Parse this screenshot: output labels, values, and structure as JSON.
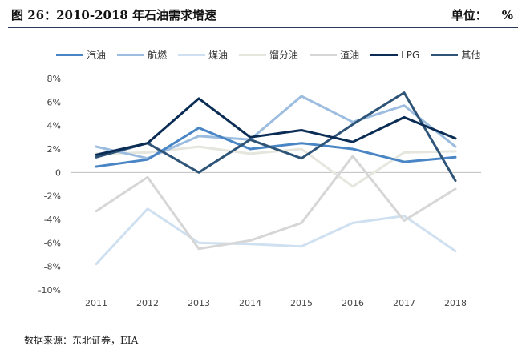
{
  "header": {
    "title": "图 26：2010-2018 年石油需求增速",
    "unit_label": "单位：",
    "unit_value": "%"
  },
  "source": "数据来源：东北证券，EIA",
  "chart_data": {
    "type": "line",
    "title": "2010-2018 年石油需求增速",
    "xlabel": "",
    "ylabel": "%",
    "ylim": [
      -10,
      8
    ],
    "yticks": [
      8,
      6,
      4,
      2,
      0,
      -2,
      -4,
      -6,
      -8,
      -10
    ],
    "ytick_labels": [
      "8%",
      "6%",
      "4%",
      "2%",
      "0",
      "-2%",
      "-4%",
      "-6%",
      "-8%",
      "-10%"
    ],
    "categories": [
      "2011",
      "2012",
      "2013",
      "2014",
      "2015",
      "2016",
      "2017",
      "2018"
    ],
    "grid": false,
    "legend_position": "top",
    "series": [
      {
        "name": "汽油",
        "color": "#4a86c5",
        "values": [
          0.5,
          1.1,
          3.8,
          2.0,
          2.5,
          2.0,
          0.9,
          1.3
        ]
      },
      {
        "name": "航燃",
        "color": "#9cbde0",
        "values": [
          2.2,
          1.2,
          3.1,
          2.8,
          6.5,
          4.3,
          5.7,
          2.2
        ]
      },
      {
        "name": "煤油",
        "color": "#cfe0f0",
        "values": [
          -7.8,
          -3.1,
          -6.0,
          -6.1,
          -6.3,
          -4.3,
          -3.7,
          -6.7
        ]
      },
      {
        "name": "馏分油",
        "color": "#e6e6df",
        "values": [
          1.6,
          1.7,
          2.2,
          1.6,
          2.0,
          -1.2,
          1.7,
          1.8
        ]
      },
      {
        "name": "渣油",
        "color": "#d6d6d6",
        "values": [
          -3.3,
          -0.4,
          -6.5,
          -5.8,
          -4.3,
          1.4,
          -4.1,
          -1.4
        ]
      },
      {
        "name": "LPG",
        "color": "#0b2d55",
        "values": [
          1.5,
          2.5,
          6.3,
          3.0,
          3.6,
          2.6,
          4.7,
          2.9
        ]
      },
      {
        "name": "其他",
        "color": "#2e5478",
        "values": [
          1.3,
          2.5,
          0.0,
          2.8,
          1.2,
          4.1,
          6.8,
          -0.7
        ]
      }
    ]
  }
}
